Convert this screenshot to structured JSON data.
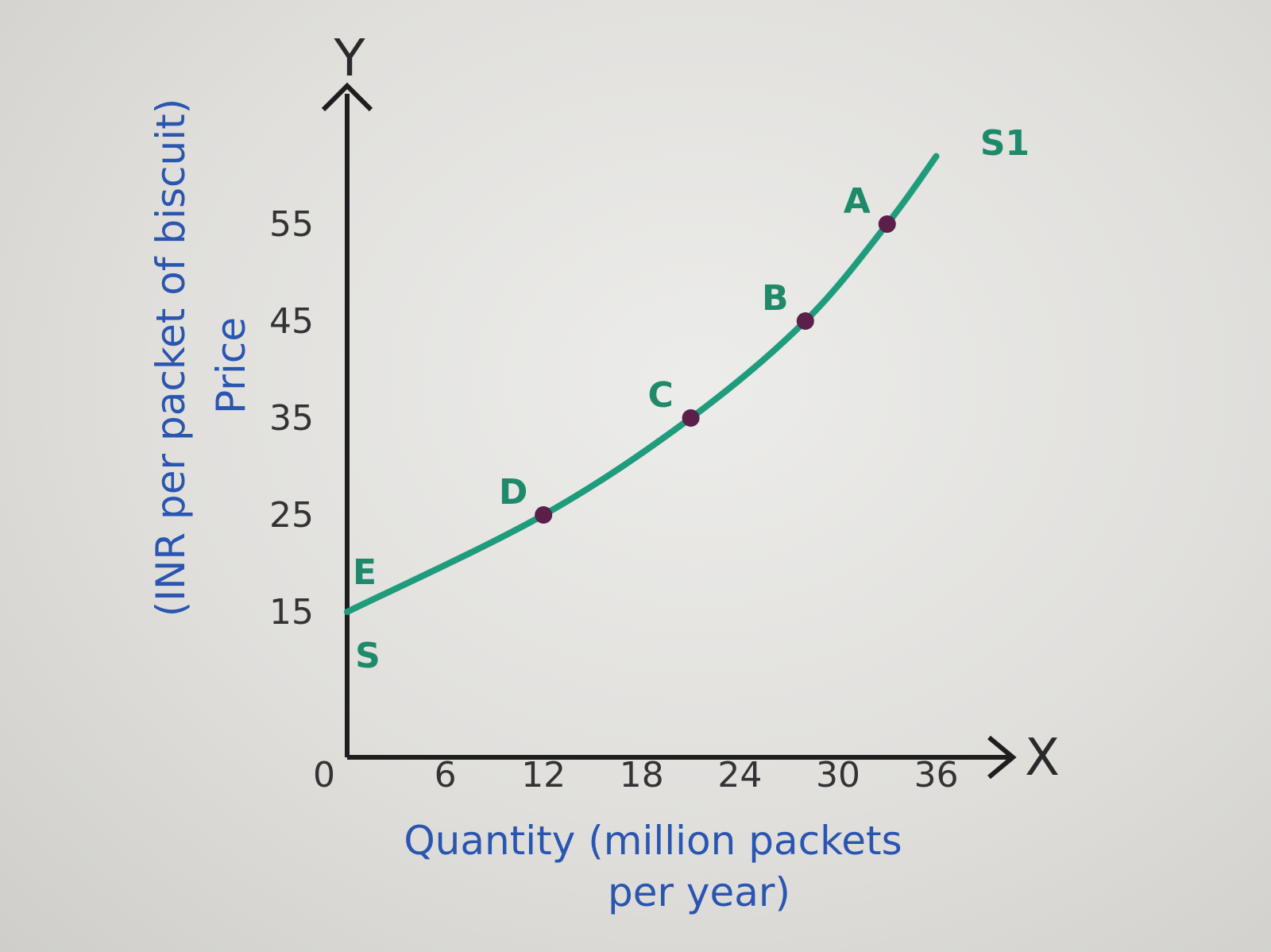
{
  "chart_data": {
    "type": "line",
    "title": "",
    "xlabel_line1": "Quantity (million packets",
    "xlabel_line2": "per year)",
    "ylabel_line1": "Price",
    "ylabel_line2": "(INR per packet of biscuit)",
    "x_axis_letter": "X",
    "y_axis_letter": "Y",
    "origin_label": "0",
    "x_ticks": [
      6,
      12,
      18,
      24,
      30,
      36
    ],
    "y_ticks": [
      15,
      25,
      35,
      45,
      55
    ],
    "xlim": [
      0,
      40
    ],
    "ylim": [
      0,
      67
    ],
    "series": [
      {
        "name": "S1",
        "start_label": "S",
        "color": "#1f9c7c",
        "x": [
          0,
          12,
          21,
          28,
          33,
          36
        ],
        "y": [
          15,
          25,
          35,
          45,
          55,
          62
        ]
      }
    ],
    "points": [
      {
        "label": "E",
        "x": 0,
        "y": 15,
        "marked": false
      },
      {
        "label": "D",
        "x": 12,
        "y": 25,
        "marked": true
      },
      {
        "label": "C",
        "x": 21,
        "y": 35,
        "marked": true
      },
      {
        "label": "B",
        "x": 28,
        "y": 45,
        "marked": true
      },
      {
        "label": "A",
        "x": 33,
        "y": 55,
        "marked": true
      }
    ],
    "point_color": "#5a1f4a",
    "axis_color": "#1e1e1e",
    "label_color": "#2a55b0",
    "grid": false,
    "legend": "none"
  }
}
